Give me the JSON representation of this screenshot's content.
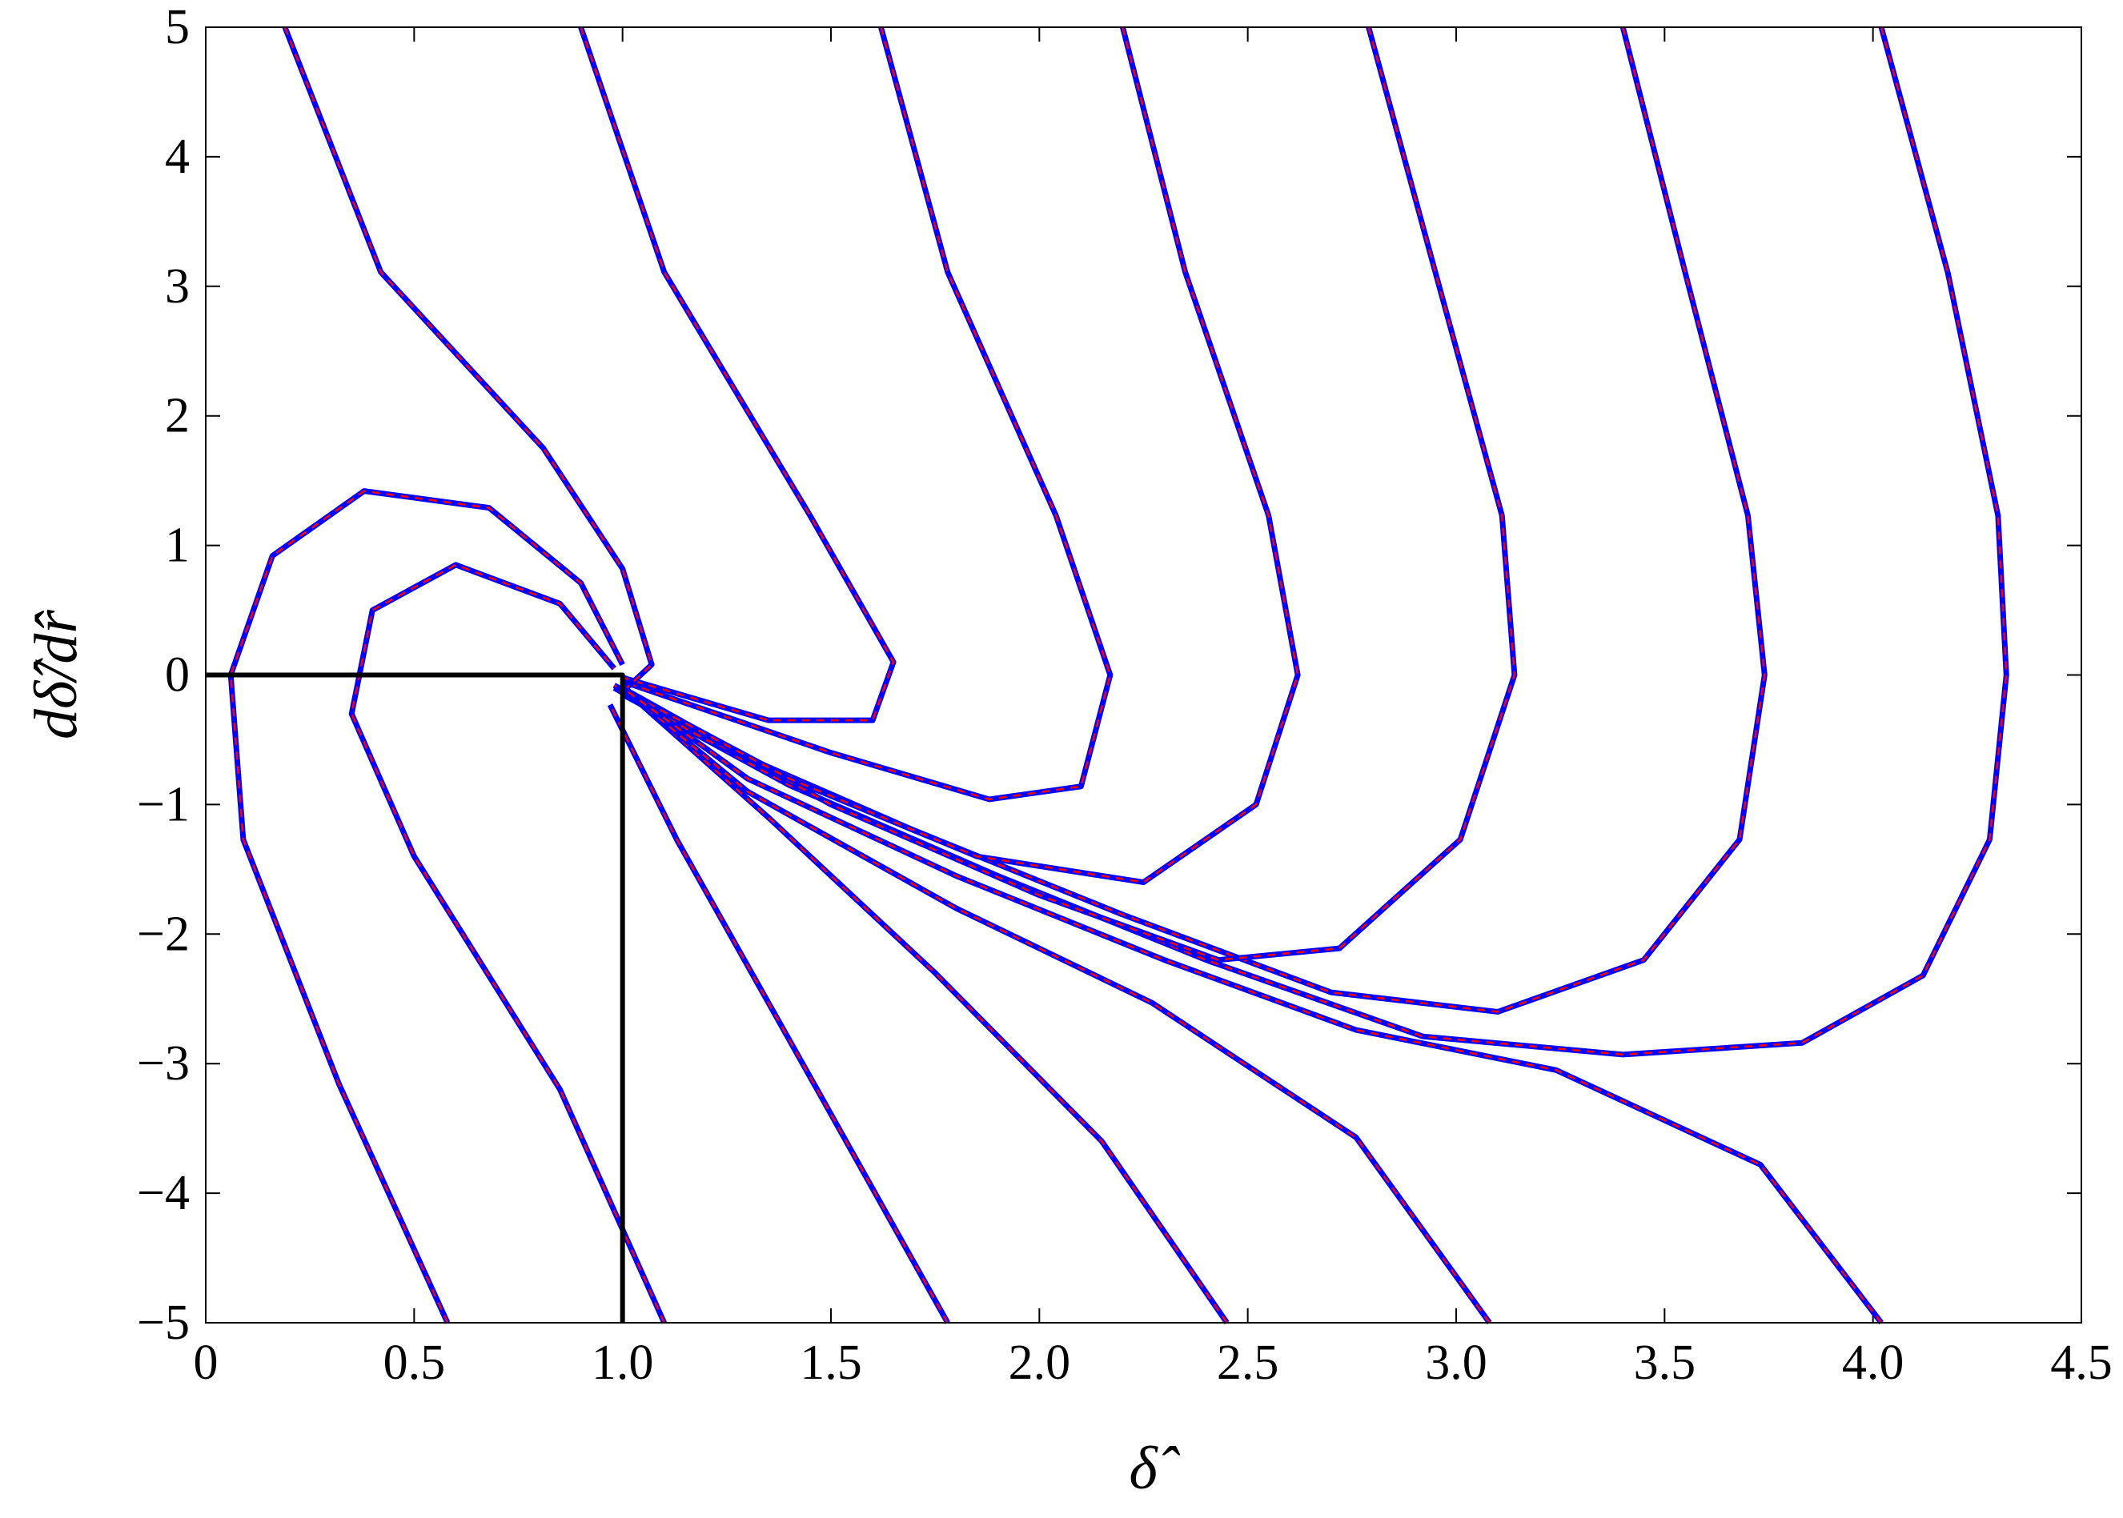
{
  "chart_data": {
    "type": "line",
    "xlabel": "δ̂",
    "ylabel": "dδ̂/dr̂",
    "xlim": [
      0,
      4.5
    ],
    "ylim": [
      -5,
      5
    ],
    "xticks": [
      0,
      0.5,
      {
        "value": 1,
        "label": "1.0"
      },
      1.5,
      {
        "value": 2,
        "label": "2.0"
      },
      2.5,
      {
        "value": 3,
        "label": "3.0"
      },
      3.5,
      {
        "value": 4,
        "label": "4.0"
      },
      4.5
    ],
    "yticks": [
      {
        "value": -5,
        "label": "−5"
      },
      {
        "value": -4,
        "label": "−4"
      },
      {
        "value": -3,
        "label": "−3"
      },
      {
        "value": -2,
        "label": "−2"
      },
      {
        "value": -1,
        "label": "−1"
      },
      0,
      1,
      2,
      3,
      4,
      5
    ],
    "series": [
      {
        "color": "#0000ff",
        "x": [
          4.02,
          4.18,
          4.3,
          4.32,
          4.28,
          4.12,
          3.83,
          3.4,
          2.92,
          2.4,
          1.9,
          1.4,
          1.0
        ],
        "values": [
          5,
          3.1,
          1.23,
          0,
          -1.27,
          -2.32,
          -2.84,
          -2.93,
          -2.79,
          -2.2,
          -1.55,
          -0.85,
          -0.15
        ]
      },
      {
        "color": "#0000ff",
        "x": [
          3.4,
          3.55,
          3.7,
          3.74,
          3.68,
          3.45,
          3.1,
          2.7,
          2.2,
          1.7,
          1.2,
          0.98
        ],
        "values": [
          5,
          3.1,
          1.23,
          0,
          -1.27,
          -2.2,
          -2.6,
          -2.45,
          -1.85,
          -1.2,
          -0.5,
          -0.1
        ]
      },
      {
        "color": "#0000ff",
        "x": [
          2.79,
          2.95,
          3.11,
          3.14,
          3.01,
          2.72,
          2.43,
          2.0,
          1.5,
          1.0
        ],
        "values": [
          5,
          3.11,
          1.23,
          0,
          -1.27,
          -2.11,
          -2.2,
          -1.7,
          -1.0,
          -0.1
        ]
      },
      {
        "color": "#0000ff",
        "x": [
          2.2,
          2.35,
          2.55,
          2.62,
          2.52,
          2.25,
          1.85,
          1.4,
          0.98
        ],
        "values": [
          5,
          3.11,
          1.23,
          0,
          -1.0,
          -1.6,
          -1.4,
          -0.8,
          -0.08
        ]
      },
      {
        "color": "#0000ff",
        "x": [
          1.62,
          1.78,
          2.04,
          2.17,
          2.1,
          1.88,
          1.5,
          1.0
        ],
        "values": [
          5,
          3.11,
          1.23,
          0,
          -0.86,
          -0.96,
          -0.6,
          -0.05
        ]
      },
      {
        "color": "#0000ff",
        "x": [
          0.9,
          1.1,
          1.45,
          1.65,
          1.6,
          1.35,
          1.0
        ],
        "values": [
          5,
          3.11,
          1.23,
          0.1,
          -0.35,
          -0.35,
          -0.02
        ]
      },
      {
        "color": "#0000ff",
        "x": [
          0.19,
          0.42,
          0.81,
          1.0,
          1.07,
          1.0
        ],
        "values": [
          5,
          3.11,
          1.75,
          0.82,
          0.08,
          -0.13
        ]
      },
      {
        "color": "#0000ff",
        "x": [
          0.58,
          0.32,
          0.09,
          0.06,
          0.16,
          0.38,
          0.68,
          0.9,
          1.0
        ],
        "values": [
          -5,
          -3.16,
          -1.27,
          0,
          0.92,
          1.42,
          1.29,
          0.71,
          0.08
        ]
      },
      {
        "color": "#0000ff",
        "x": [
          1.1,
          0.85,
          0.5,
          0.35,
          0.4,
          0.6,
          0.85,
          0.98
        ],
        "values": [
          -5,
          -3.2,
          -1.4,
          -0.3,
          0.5,
          0.85,
          0.55,
          0.05
        ]
      },
      {
        "color": "#0000ff",
        "x": [
          1.78,
          1.46,
          1.13,
          0.97
        ],
        "values": [
          -5,
          -3.16,
          -1.27,
          -0.23
        ]
      },
      {
        "color": "#0000ff",
        "x": [
          2.45,
          2.15,
          1.75,
          1.35,
          1.0
        ],
        "values": [
          -5,
          -3.6,
          -2.3,
          -1.1,
          -0.1
        ]
      },
      {
        "color": "#0000ff",
        "x": [
          3.08,
          2.76,
          2.27,
          1.8,
          1.3,
          1.0
        ],
        "values": [
          -5,
          -3.57,
          -2.53,
          -1.8,
          -0.9,
          -0.1
        ]
      },
      {
        "color": "#0000ff",
        "x": [
          4.02,
          3.73,
          3.24,
          2.76,
          2.3,
          1.8,
          1.3,
          1.0
        ],
        "values": [
          -5,
          -3.78,
          -3.05,
          -2.74,
          -2.2,
          -1.55,
          -0.8,
          -0.1
        ]
      },
      {
        "color": "#000000",
        "x": [
          0,
          1,
          1
        ],
        "values": [
          0,
          0,
          -5
        ]
      }
    ]
  }
}
